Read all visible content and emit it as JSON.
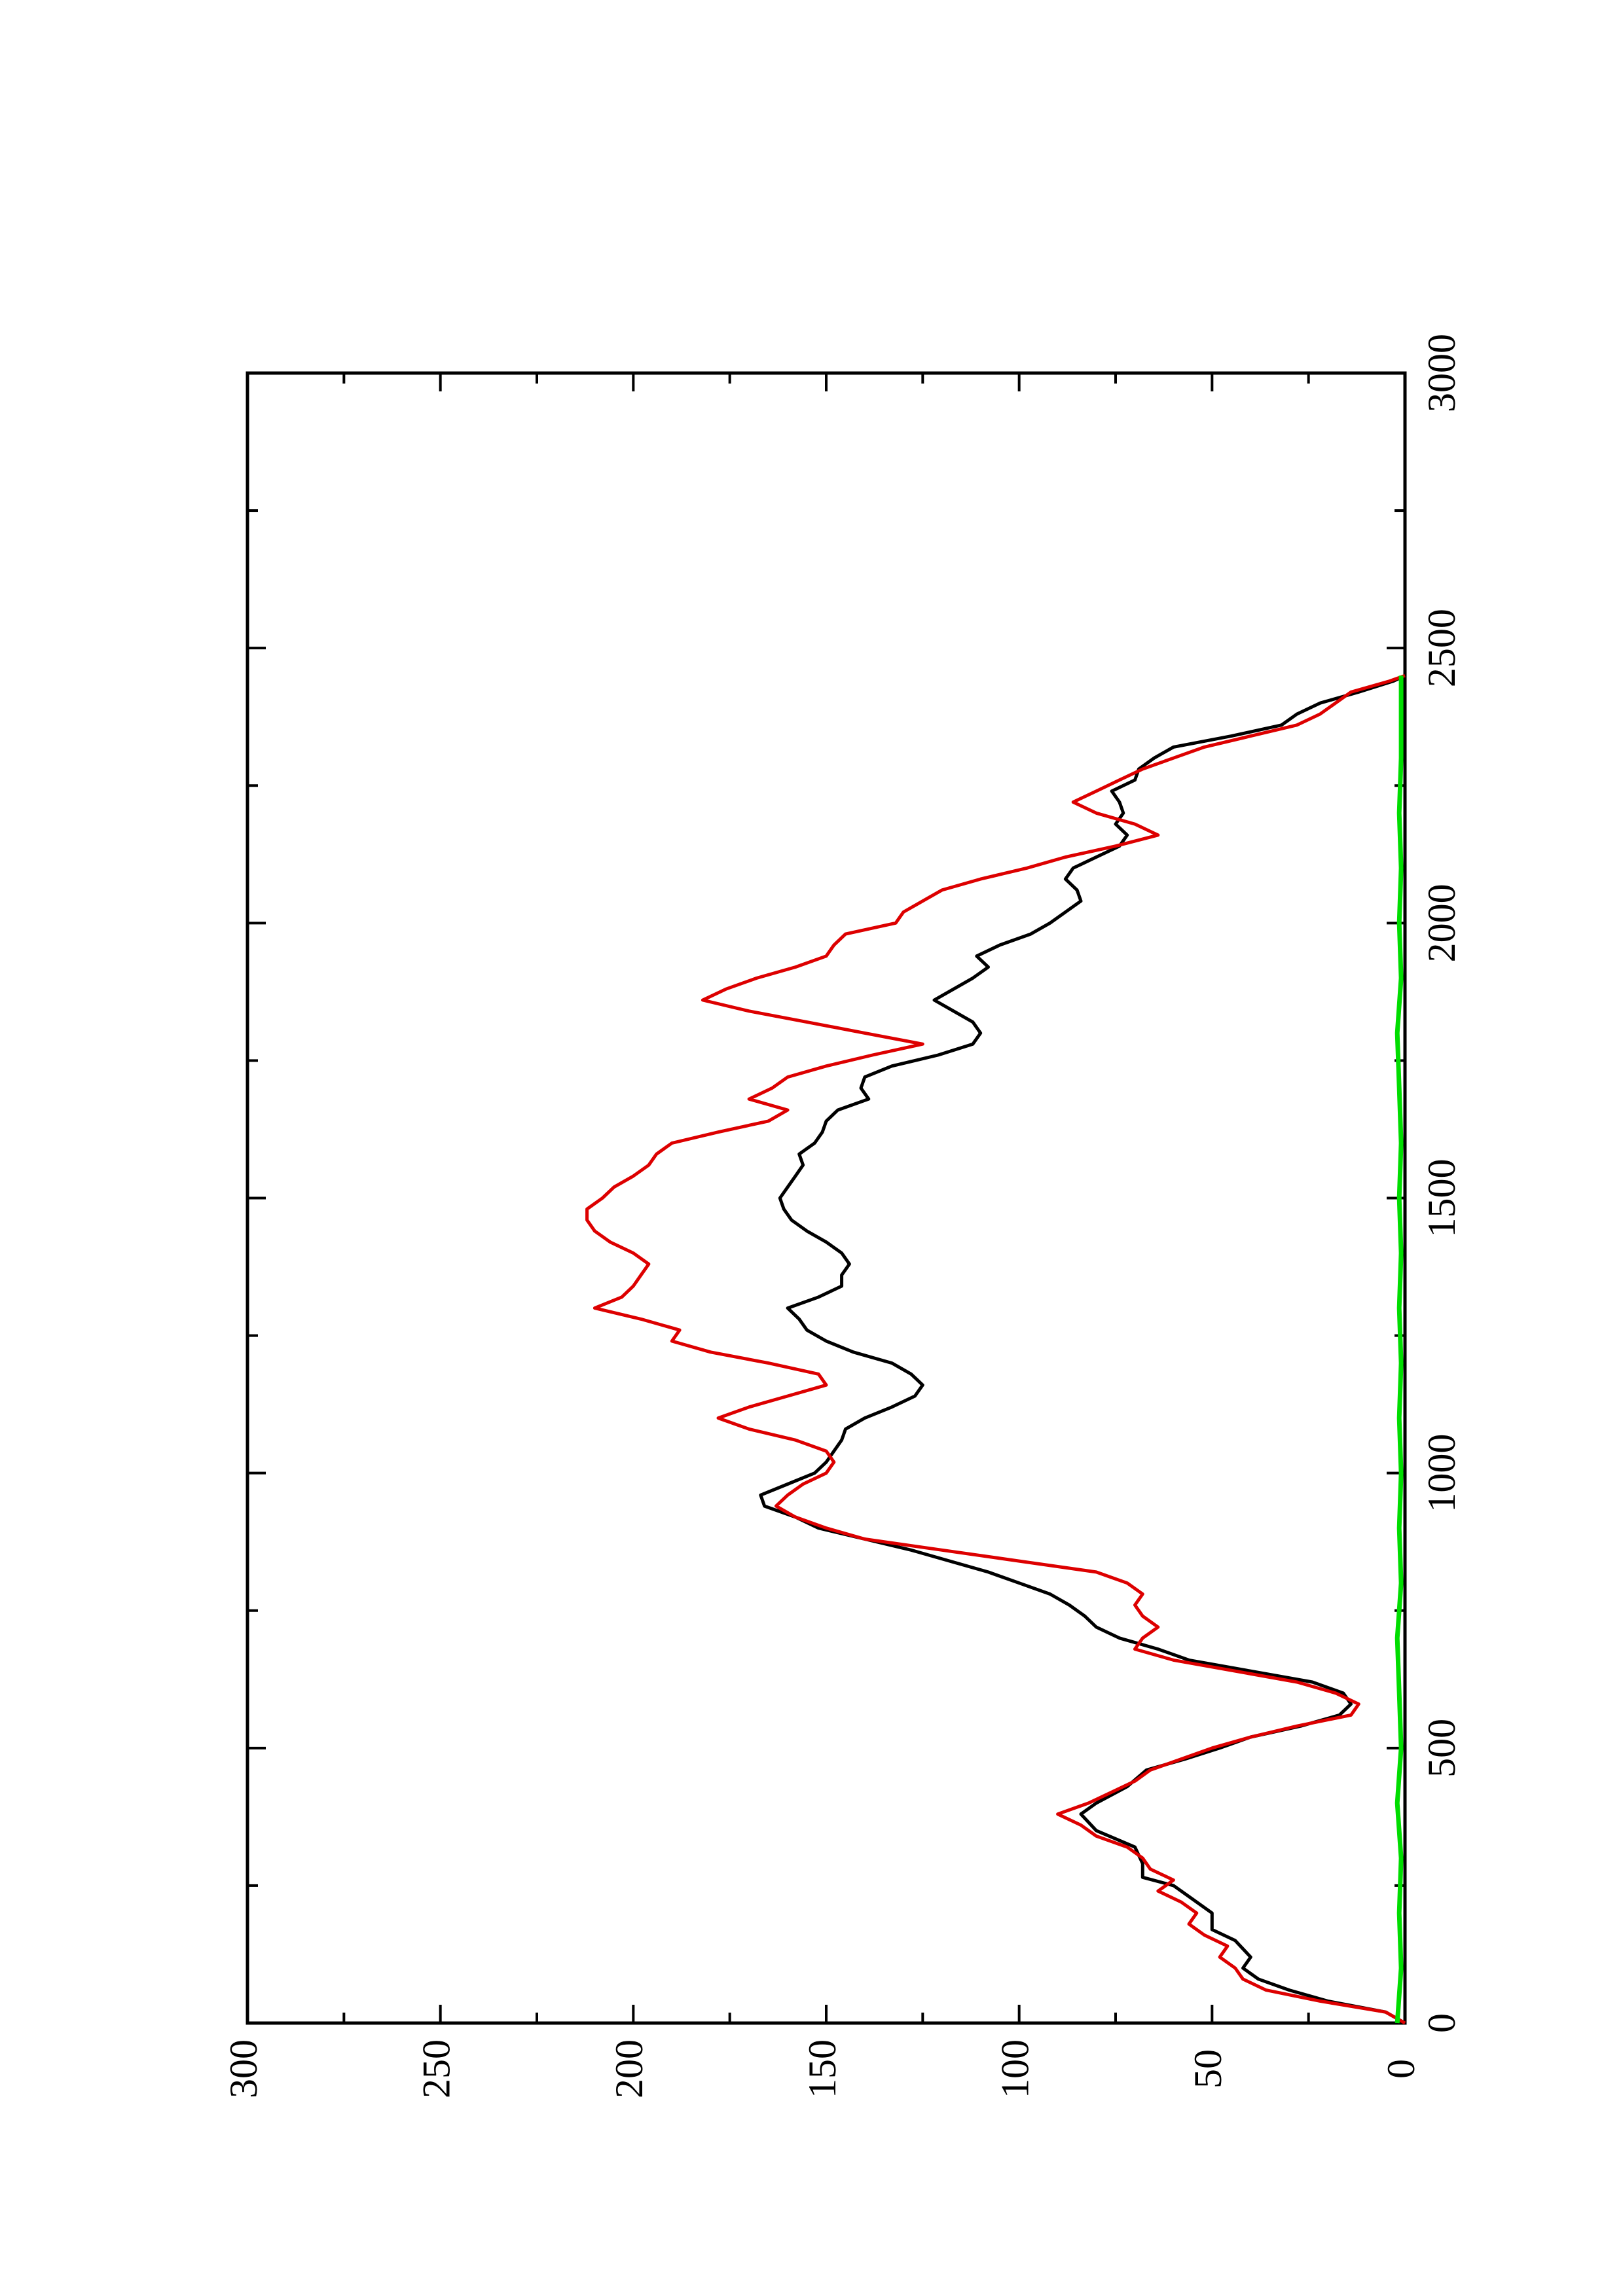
{
  "chart_data": {
    "type": "line",
    "orientation": "rotated-90-ccw",
    "title": "",
    "xlabel": "",
    "ylabel": "",
    "xlim": [
      0,
      3000
    ],
    "ylim": [
      0,
      300
    ],
    "x_ticks": [
      "0",
      "500",
      "1000",
      "1500",
      "2000",
      "2500",
      "3000"
    ],
    "y_ticks": [
      "0",
      "50",
      "100",
      "150",
      "200",
      "250",
      "300"
    ],
    "grid": false,
    "legend": "none",
    "series": [
      {
        "color": "#000000",
        "points": [
          [
            0,
            0
          ],
          [
            20,
            5
          ],
          [
            40,
            20
          ],
          [
            60,
            30
          ],
          [
            80,
            38
          ],
          [
            100,
            42
          ],
          [
            120,
            40
          ],
          [
            150,
            44
          ],
          [
            170,
            50
          ],
          [
            200,
            50
          ],
          [
            230,
            56
          ],
          [
            250,
            60
          ],
          [
            265,
            68
          ],
          [
            290,
            68
          ],
          [
            320,
            70
          ],
          [
            350,
            80
          ],
          [
            380,
            84
          ],
          [
            400,
            80
          ],
          [
            430,
            72
          ],
          [
            460,
            67
          ],
          [
            480,
            57
          ],
          [
            500,
            48
          ],
          [
            520,
            40
          ],
          [
            540,
            27
          ],
          [
            560,
            17
          ],
          [
            580,
            14
          ],
          [
            600,
            16
          ],
          [
            620,
            24
          ],
          [
            640,
            40
          ],
          [
            660,
            56
          ],
          [
            680,
            64
          ],
          [
            700,
            74
          ],
          [
            720,
            80
          ],
          [
            740,
            83
          ],
          [
            760,
            87
          ],
          [
            780,
            92
          ],
          [
            800,
            100
          ],
          [
            820,
            108
          ],
          [
            840,
            118
          ],
          [
            860,
            128
          ],
          [
            880,
            140
          ],
          [
            900,
            152
          ],
          [
            920,
            158
          ],
          [
            940,
            166
          ],
          [
            960,
            167
          ],
          [
            980,
            160
          ],
          [
            1000,
            153
          ],
          [
            1020,
            150
          ],
          [
            1040,
            148
          ],
          [
            1060,
            146
          ],
          [
            1080,
            145
          ],
          [
            1100,
            140
          ],
          [
            1120,
            133
          ],
          [
            1140,
            127
          ],
          [
            1160,
            125
          ],
          [
            1180,
            128
          ],
          [
            1200,
            133
          ],
          [
            1220,
            143
          ],
          [
            1240,
            150
          ],
          [
            1260,
            155
          ],
          [
            1280,
            157
          ],
          [
            1300,
            160
          ],
          [
            1320,
            152
          ],
          [
            1340,
            146
          ],
          [
            1360,
            146
          ],
          [
            1380,
            144
          ],
          [
            1400,
            146
          ],
          [
            1420,
            150
          ],
          [
            1440,
            155
          ],
          [
            1460,
            159
          ],
          [
            1480,
            161
          ],
          [
            1500,
            162
          ],
          [
            1520,
            160
          ],
          [
            1540,
            158
          ],
          [
            1560,
            156
          ],
          [
            1580,
            157
          ],
          [
            1600,
            153
          ],
          [
            1620,
            151
          ],
          [
            1640,
            150
          ],
          [
            1660,
            147
          ],
          [
            1680,
            139
          ],
          [
            1700,
            141
          ],
          [
            1720,
            140
          ],
          [
            1740,
            133
          ],
          [
            1760,
            121
          ],
          [
            1780,
            112
          ],
          [
            1800,
            110
          ],
          [
            1820,
            112
          ],
          [
            1840,
            117
          ],
          [
            1860,
            122
          ],
          [
            1880,
            117
          ],
          [
            1900,
            112
          ],
          [
            1920,
            108
          ],
          [
            1940,
            111
          ],
          [
            1960,
            105
          ],
          [
            1980,
            97
          ],
          [
            2000,
            92
          ],
          [
            2020,
            88
          ],
          [
            2040,
            84
          ],
          [
            2060,
            85
          ],
          [
            2080,
            88
          ],
          [
            2100,
            86
          ],
          [
            2120,
            80
          ],
          [
            2140,
            74
          ],
          [
            2160,
            72
          ],
          [
            2180,
            75
          ],
          [
            2200,
            73
          ],
          [
            2220,
            74
          ],
          [
            2240,
            76
          ],
          [
            2260,
            70
          ],
          [
            2280,
            69
          ],
          [
            2300,
            65
          ],
          [
            2320,
            60
          ],
          [
            2340,
            45
          ],
          [
            2360,
            32
          ],
          [
            2380,
            28
          ],
          [
            2400,
            22
          ],
          [
            2420,
            12
          ],
          [
            2440,
            3
          ],
          [
            2450,
            0
          ]
        ]
      },
      {
        "color": "#dd0000",
        "points": [
          [
            0,
            0
          ],
          [
            20,
            5
          ],
          [
            40,
            22
          ],
          [
            60,
            36
          ],
          [
            80,
            42
          ],
          [
            100,
            44
          ],
          [
            120,
            48
          ],
          [
            140,
            46
          ],
          [
            160,
            52
          ],
          [
            180,
            56
          ],
          [
            200,
            54
          ],
          [
            220,
            58
          ],
          [
            240,
            64
          ],
          [
            260,
            60
          ],
          [
            280,
            66
          ],
          [
            300,
            68
          ],
          [
            320,
            72
          ],
          [
            340,
            80
          ],
          [
            360,
            84
          ],
          [
            380,
            90
          ],
          [
            400,
            82
          ],
          [
            420,
            76
          ],
          [
            440,
            70
          ],
          [
            460,
            66
          ],
          [
            480,
            58
          ],
          [
            500,
            50
          ],
          [
            520,
            40
          ],
          [
            540,
            28
          ],
          [
            560,
            14
          ],
          [
            580,
            12
          ],
          [
            600,
            18
          ],
          [
            620,
            28
          ],
          [
            640,
            44
          ],
          [
            660,
            60
          ],
          [
            680,
            70
          ],
          [
            700,
            68
          ],
          [
            720,
            64
          ],
          [
            740,
            68
          ],
          [
            760,
            70
          ],
          [
            780,
            68
          ],
          [
            800,
            72
          ],
          [
            820,
            80
          ],
          [
            840,
            100
          ],
          [
            860,
            120
          ],
          [
            880,
            140
          ],
          [
            900,
            150
          ],
          [
            920,
            158
          ],
          [
            940,
            163
          ],
          [
            960,
            160
          ],
          [
            980,
            156
          ],
          [
            1000,
            150
          ],
          [
            1020,
            148
          ],
          [
            1040,
            150
          ],
          [
            1060,
            158
          ],
          [
            1080,
            170
          ],
          [
            1100,
            178
          ],
          [
            1120,
            170
          ],
          [
            1140,
            160
          ],
          [
            1160,
            150
          ],
          [
            1180,
            152
          ],
          [
            1200,
            165
          ],
          [
            1220,
            180
          ],
          [
            1240,
            190
          ],
          [
            1260,
            188
          ],
          [
            1280,
            198
          ],
          [
            1300,
            210
          ],
          [
            1320,
            203
          ],
          [
            1340,
            200
          ],
          [
            1360,
            198
          ],
          [
            1380,
            196
          ],
          [
            1400,
            200
          ],
          [
            1420,
            206
          ],
          [
            1440,
            210
          ],
          [
            1460,
            212
          ],
          [
            1480,
            212
          ],
          [
            1500,
            208
          ],
          [
            1520,
            205
          ],
          [
            1540,
            200
          ],
          [
            1560,
            196
          ],
          [
            1580,
            194
          ],
          [
            1600,
            190
          ],
          [
            1620,
            178
          ],
          [
            1640,
            165
          ],
          [
            1660,
            160
          ],
          [
            1680,
            170
          ],
          [
            1700,
            164
          ],
          [
            1720,
            160
          ],
          [
            1740,
            150
          ],
          [
            1760,
            138
          ],
          [
            1780,
            125
          ],
          [
            1800,
            140
          ],
          [
            1820,
            155
          ],
          [
            1840,
            170
          ],
          [
            1860,
            182
          ],
          [
            1880,
            176
          ],
          [
            1900,
            168
          ],
          [
            1920,
            158
          ],
          [
            1940,
            150
          ],
          [
            1960,
            148
          ],
          [
            1980,
            145
          ],
          [
            2000,
            132
          ],
          [
            2020,
            130
          ],
          [
            2040,
            125
          ],
          [
            2060,
            120
          ],
          [
            2080,
            110
          ],
          [
            2100,
            98
          ],
          [
            2120,
            88
          ],
          [
            2140,
            75
          ],
          [
            2160,
            64
          ],
          [
            2180,
            70
          ],
          [
            2200,
            80
          ],
          [
            2220,
            86
          ],
          [
            2240,
            80
          ],
          [
            2260,
            74
          ],
          [
            2280,
            68
          ],
          [
            2300,
            60
          ],
          [
            2320,
            52
          ],
          [
            2340,
            40
          ],
          [
            2360,
            28
          ],
          [
            2380,
            22
          ],
          [
            2400,
            18
          ],
          [
            2420,
            14
          ],
          [
            2440,
            4
          ],
          [
            2450,
            0
          ]
        ]
      },
      {
        "color": "#00dd00",
        "points": [
          [
            0,
            2
          ],
          [
            100,
            1
          ],
          [
            200,
            1.5
          ],
          [
            300,
            1
          ],
          [
            400,
            2
          ],
          [
            500,
            1
          ],
          [
            600,
            1.5
          ],
          [
            700,
            2
          ],
          [
            800,
            1
          ],
          [
            900,
            1.5
          ],
          [
            1000,
            1
          ],
          [
            1100,
            1.5
          ],
          [
            1200,
            1
          ],
          [
            1300,
            1.5
          ],
          [
            1400,
            1
          ],
          [
            1500,
            1.5
          ],
          [
            1600,
            1
          ],
          [
            1700,
            1.5
          ],
          [
            1800,
            2
          ],
          [
            1900,
            1
          ],
          [
            2000,
            1.5
          ],
          [
            2100,
            1
          ],
          [
            2200,
            1.5
          ],
          [
            2300,
            1
          ],
          [
            2400,
            1
          ],
          [
            2450,
            1
          ]
        ]
      }
    ]
  }
}
